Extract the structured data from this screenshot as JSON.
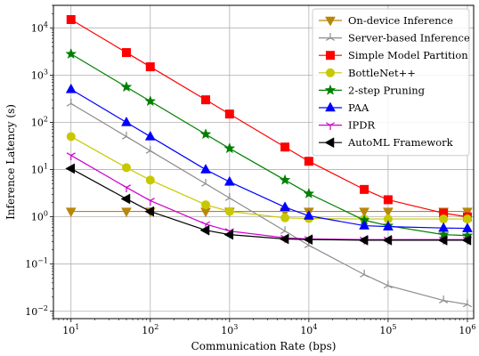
{
  "chart_data": {
    "type": "line",
    "xlabel": "Communication Rate (bps)",
    "ylabel": "Inference Latency (s)",
    "xscale": "log",
    "yscale": "log",
    "xlim": [
      6,
      1200000
    ],
    "ylim": [
      0.007,
      30000
    ],
    "grid": true,
    "legend_position": "top-right",
    "x_ticks": [
      {
        "value": 10,
        "base": "10",
        "exp": "1"
      },
      {
        "value": 100,
        "base": "10",
        "exp": "2"
      },
      {
        "value": 1000,
        "base": "10",
        "exp": "3"
      },
      {
        "value": 10000,
        "base": "10",
        "exp": "4"
      },
      {
        "value": 100000,
        "base": "10",
        "exp": "5"
      },
      {
        "value": 1000000,
        "base": "10",
        "exp": "6"
      }
    ],
    "y_ticks": [
      {
        "value": 0.01,
        "base": "10",
        "exp": "−2"
      },
      {
        "value": 0.1,
        "base": "10",
        "exp": "−1"
      },
      {
        "value": 1,
        "base": "10",
        "exp": "0"
      },
      {
        "value": 10,
        "base": "10",
        "exp": "1"
      },
      {
        "value": 100,
        "base": "10",
        "exp": "2"
      },
      {
        "value": 1000,
        "base": "10",
        "exp": "3"
      },
      {
        "value": 10000,
        "base": "10",
        "exp": "4"
      }
    ],
    "series": [
      {
        "name": "On-device Inference",
        "color": "#b8860b",
        "marker": "triangle-down",
        "x": [
          10,
          50,
          100,
          500,
          1000,
          5000,
          10000,
          50000,
          100000,
          500000,
          1000000
        ],
        "y": [
          1.3,
          1.3,
          1.3,
          1.3,
          1.3,
          1.3,
          1.3,
          1.3,
          1.3,
          1.3,
          1.3
        ]
      },
      {
        "name": "Server-based Inference",
        "color": "#8c8c8c",
        "marker": "tri-up",
        "x": [
          10,
          50,
          100,
          500,
          1000,
          5000,
          10000,
          50000,
          100000,
          500000,
          1000000
        ],
        "y": [
          250,
          50,
          25,
          5,
          2.5,
          0.5,
          0.25,
          0.06,
          0.035,
          0.017,
          0.014
        ]
      },
      {
        "name": "Simple Model Partition",
        "color": "#ff0000",
        "marker": "square",
        "x": [
          10,
          50,
          100,
          500,
          1000,
          5000,
          10000,
          50000,
          100000,
          500000,
          1000000
        ],
        "y": [
          15000,
          3000,
          1500,
          300,
          150,
          30,
          15,
          3.8,
          2.3,
          1.2,
          1.0
        ]
      },
      {
        "name": "BottleNet++",
        "color": "#c8c800",
        "marker": "circle",
        "x": [
          10,
          50,
          100,
          500,
          1000,
          5000,
          10000,
          50000,
          100000,
          500000,
          1000000
        ],
        "y": [
          50,
          11,
          6,
          1.8,
          1.3,
          0.95,
          0.92,
          0.9,
          0.9,
          0.9,
          0.9
        ]
      },
      {
        "name": "2-step Pruning",
        "color": "#008000",
        "marker": "star",
        "x": [
          10,
          50,
          100,
          500,
          1000,
          5000,
          10000,
          50000,
          100000,
          500000,
          1000000
        ],
        "y": [
          2800,
          560,
          280,
          56,
          28,
          6,
          3.1,
          0.85,
          0.65,
          0.42,
          0.4
        ]
      },
      {
        "name": "PAA",
        "color": "#0000ff",
        "marker": "triangle-up",
        "x": [
          10,
          50,
          100,
          500,
          1000,
          5000,
          10000,
          50000,
          100000,
          500000,
          1000000
        ],
        "y": [
          500,
          100,
          50,
          10,
          5.5,
          1.6,
          1.05,
          0.65,
          0.62,
          0.58,
          0.57
        ]
      },
      {
        "name": "IPDR",
        "color": "#cc00cc",
        "marker": "tri-down",
        "x": [
          10,
          50,
          100,
          500,
          1000,
          5000,
          10000,
          50000,
          100000,
          500000,
          1000000
        ],
        "y": [
          20,
          4.2,
          2.2,
          0.7,
          0.5,
          0.36,
          0.34,
          0.33,
          0.33,
          0.33,
          0.33
        ]
      },
      {
        "name": "AutoML Framework",
        "color": "#000000",
        "marker": "triangle-left",
        "x": [
          10,
          50,
          100,
          500,
          1000,
          5000,
          10000,
          50000,
          100000,
          500000,
          1000000
        ],
        "y": [
          10.5,
          2.4,
          1.3,
          0.52,
          0.42,
          0.34,
          0.33,
          0.32,
          0.32,
          0.32,
          0.32
        ]
      }
    ]
  }
}
